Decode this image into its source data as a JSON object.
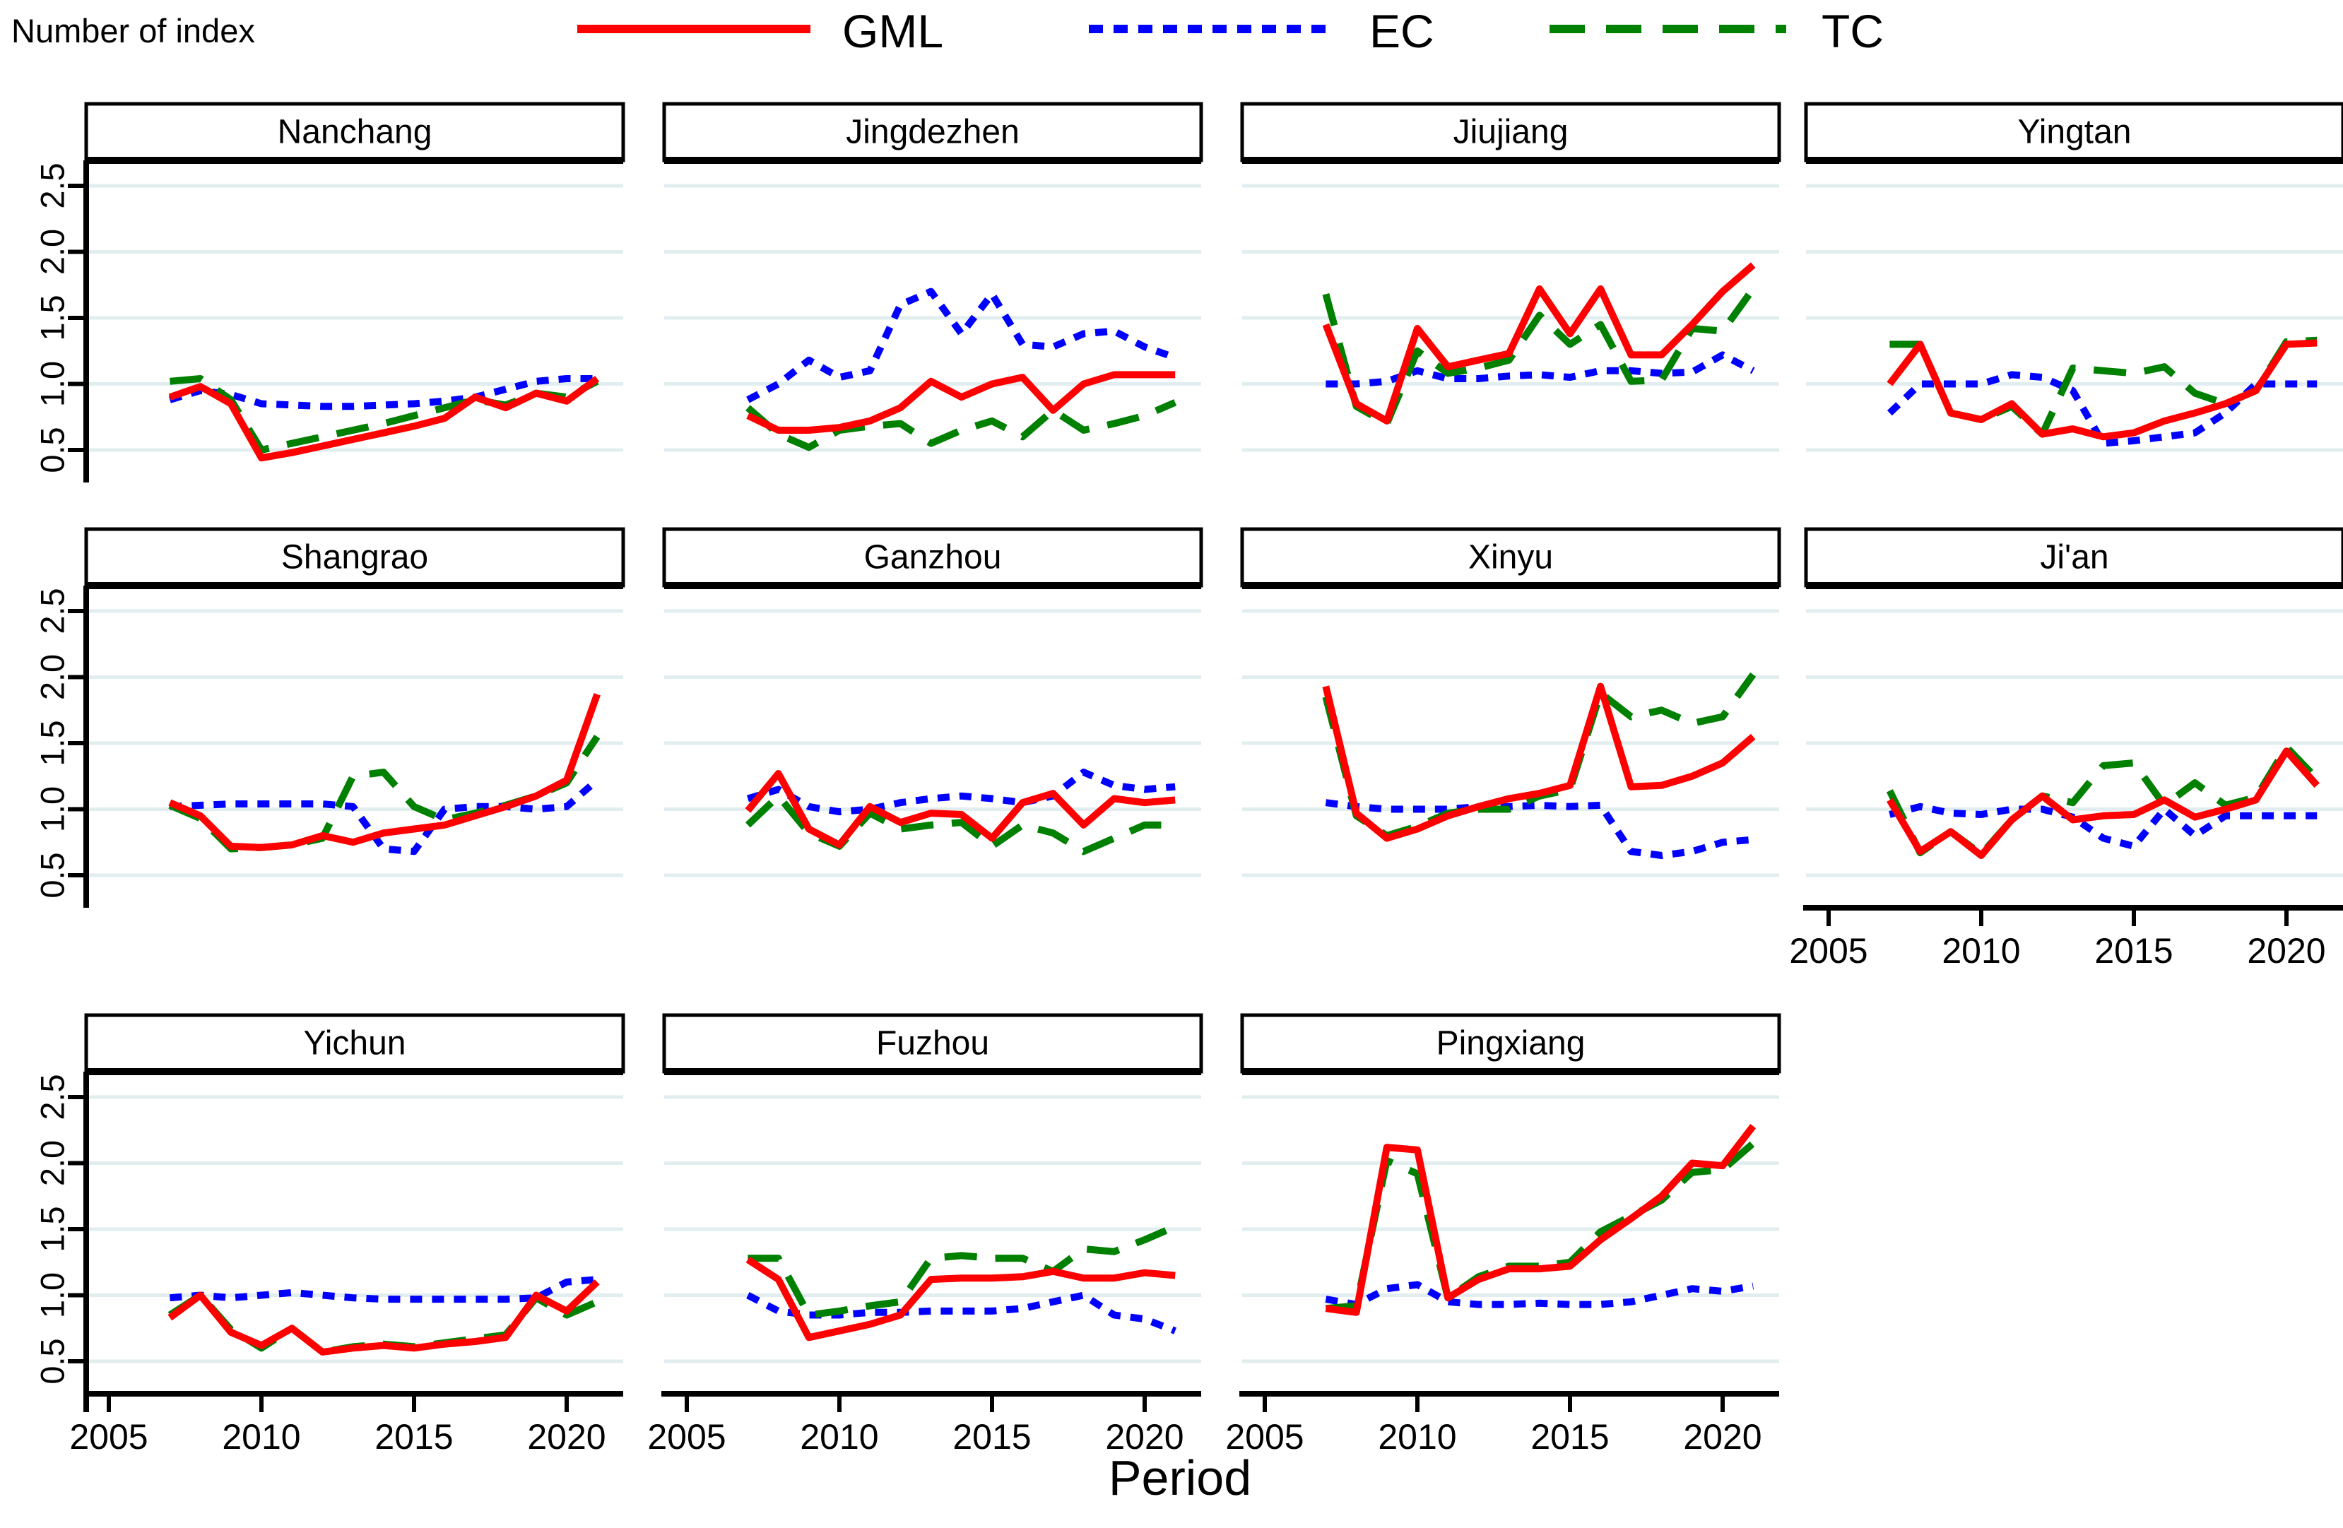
{
  "header": {
    "ylabel": "Number of index",
    "legend": [
      {
        "label": "GML",
        "color": "#ff0000",
        "style": "solid"
      },
      {
        "label": "EC",
        "color": "#0000ff",
        "style": "short-dash"
      },
      {
        "label": "TC",
        "color": "#008000",
        "style": "long-dash"
      }
    ]
  },
  "xlabel": "Period",
  "axes": {
    "y_tick_labels": [
      "0.5",
      "1.0",
      "1.5",
      "2.0",
      "2.5"
    ],
    "y_ticks": [
      0.5,
      1.0,
      1.5,
      2.0,
      2.5
    ],
    "x_tick_labels": [
      "2005",
      "2010",
      "2015",
      "2020"
    ],
    "x_ticks": [
      2005,
      2010,
      2015,
      2020
    ],
    "grid": true,
    "gridline_color": "#e2edf0"
  },
  "chart_data": {
    "type": "line",
    "x": [
      2007,
      2008,
      2009,
      2010,
      2011,
      2012,
      2013,
      2014,
      2015,
      2016,
      2017,
      2018,
      2019,
      2020,
      2021
    ],
    "series_names": [
      "GML",
      "EC",
      "TC"
    ],
    "panels": [
      {
        "title": "Nanchang",
        "series": [
          {
            "name": "GML",
            "values": [
              0.9,
              0.98,
              0.85,
              0.44,
              0.48,
              0.53,
              0.58,
              0.63,
              0.68,
              0.74,
              0.9,
              0.82,
              0.93,
              0.87,
              1.04
            ]
          },
          {
            "name": "EC",
            "values": [
              0.88,
              0.95,
              0.92,
              0.85,
              0.84,
              0.83,
              0.83,
              0.84,
              0.85,
              0.87,
              0.9,
              0.96,
              1.02,
              1.04,
              1.04
            ]
          },
          {
            "name": "TC",
            "values": [
              1.02,
              1.04,
              0.88,
              0.5,
              0.55,
              0.6,
              0.65,
              0.7,
              0.76,
              0.82,
              0.88,
              0.84,
              0.93,
              0.9,
              1.02
            ]
          }
        ]
      },
      {
        "title": "Jingdezhen",
        "series": [
          {
            "name": "GML",
            "values": [
              0.76,
              0.65,
              0.65,
              0.67,
              0.72,
              0.82,
              1.02,
              0.9,
              1.0,
              1.05,
              0.8,
              1.0,
              1.07,
              1.07,
              1.07
            ]
          },
          {
            "name": "EC",
            "values": [
              0.88,
              1.0,
              1.18,
              1.05,
              1.1,
              1.6,
              1.7,
              1.38,
              1.68,
              1.3,
              1.28,
              1.38,
              1.4,
              1.28,
              1.2
            ]
          },
          {
            "name": "TC",
            "values": [
              0.82,
              0.62,
              0.52,
              0.65,
              0.68,
              0.7,
              0.55,
              0.65,
              0.72,
              0.6,
              0.8,
              0.65,
              0.7,
              0.76,
              0.86
            ]
          }
        ]
      },
      {
        "title": "Jiujiang",
        "series": [
          {
            "name": "GML",
            "values": [
              1.45,
              0.85,
              0.72,
              1.42,
              1.13,
              1.18,
              1.23,
              1.72,
              1.38,
              1.72,
              1.22,
              1.22,
              1.45,
              1.7,
              1.9
            ]
          },
          {
            "name": "EC",
            "values": [
              1.0,
              1.0,
              1.02,
              1.1,
              1.04,
              1.04,
              1.06,
              1.07,
              1.05,
              1.1,
              1.1,
              1.08,
              1.09,
              1.22,
              1.1
            ]
          },
          {
            "name": "TC",
            "values": [
              1.68,
              0.83,
              0.7,
              1.25,
              1.08,
              1.12,
              1.18,
              1.52,
              1.3,
              1.45,
              1.02,
              1.03,
              1.42,
              1.4,
              1.72
            ]
          }
        ]
      },
      {
        "title": "Yingtan",
        "series": [
          {
            "name": "GML",
            "values": [
              1.0,
              1.3,
              0.78,
              0.73,
              0.85,
              0.62,
              0.66,
              0.6,
              0.63,
              0.72,
              0.78,
              0.85,
              0.95,
              1.3,
              1.31
            ]
          },
          {
            "name": "EC",
            "values": [
              0.78,
              1.0,
              1.0,
              1.0,
              1.07,
              1.05,
              0.95,
              0.55,
              0.57,
              0.6,
              0.63,
              0.78,
              1.0,
              1.0,
              1.0
            ]
          },
          {
            "name": "TC",
            "values": [
              1.3,
              1.3,
              0.78,
              0.73,
              0.83,
              0.62,
              1.12,
              1.1,
              1.08,
              1.13,
              0.93,
              0.85,
              0.95,
              1.32,
              1.33
            ]
          }
        ]
      },
      {
        "title": "Shangrao",
        "series": [
          {
            "name": "GML",
            "values": [
              1.05,
              0.95,
              0.72,
              0.71,
              0.73,
              0.8,
              0.75,
              0.82,
              0.85,
              0.88,
              0.95,
              1.02,
              1.1,
              1.22,
              1.87
            ]
          },
          {
            "name": "EC",
            "values": [
              1.02,
              1.03,
              1.04,
              1.04,
              1.04,
              1.04,
              1.02,
              0.7,
              0.68,
              1.0,
              1.02,
              1.02,
              1.0,
              1.02,
              1.22
            ]
          },
          {
            "name": "TC",
            "values": [
              1.03,
              0.93,
              0.7,
              0.71,
              0.73,
              0.78,
              1.25,
              1.28,
              1.02,
              0.92,
              0.97,
              1.03,
              1.1,
              1.2,
              1.55
            ]
          }
        ]
      },
      {
        "title": "Ganzhou",
        "series": [
          {
            "name": "GML",
            "values": [
              0.99,
              1.27,
              0.85,
              0.73,
              1.02,
              0.9,
              0.97,
              0.96,
              0.78,
              1.05,
              1.12,
              0.88,
              1.08,
              1.05,
              1.07
            ]
          },
          {
            "name": "EC",
            "values": [
              1.08,
              1.15,
              1.02,
              0.98,
              1.0,
              1.05,
              1.08,
              1.1,
              1.08,
              1.05,
              1.1,
              1.28,
              1.18,
              1.15,
              1.17
            ]
          },
          {
            "name": "TC",
            "values": [
              0.88,
              1.1,
              0.82,
              0.72,
              0.97,
              0.85,
              0.88,
              0.9,
              0.72,
              0.88,
              0.82,
              0.68,
              0.78,
              0.88,
              0.88
            ]
          }
        ]
      },
      {
        "title": "Xinyu",
        "series": [
          {
            "name": "GML",
            "values": [
              1.93,
              0.97,
              0.78,
              0.85,
              0.95,
              1.02,
              1.08,
              1.12,
              1.18,
              1.93,
              1.17,
              1.18,
              1.25,
              1.35,
              1.55
            ]
          },
          {
            "name": "EC",
            "values": [
              1.05,
              1.02,
              1.0,
              1.0,
              1.0,
              1.02,
              1.02,
              1.03,
              1.02,
              1.03,
              0.68,
              0.65,
              0.68,
              0.75,
              0.77
            ]
          },
          {
            "name": "TC",
            "values": [
              1.85,
              0.95,
              0.8,
              0.87,
              0.97,
              1.0,
              1.0,
              1.1,
              1.15,
              1.88,
              1.7,
              1.75,
              1.65,
              1.7,
              2.02
            ]
          }
        ]
      },
      {
        "title": "Ji'an",
        "series": [
          {
            "name": "GML",
            "values": [
              1.07,
              0.68,
              0.83,
              0.65,
              0.92,
              1.1,
              0.92,
              0.95,
              0.96,
              1.07,
              0.94,
              1.0,
              1.07,
              1.44,
              1.18
            ]
          },
          {
            "name": "EC",
            "values": [
              0.96,
              1.02,
              0.97,
              0.96,
              1.0,
              1.0,
              0.94,
              0.78,
              0.72,
              1.0,
              0.8,
              0.95,
              0.95,
              0.95,
              0.95
            ]
          },
          {
            "name": "TC",
            "values": [
              1.14,
              0.67,
              0.83,
              0.66,
              0.92,
              1.1,
              1.05,
              1.33,
              1.35,
              1.03,
              1.2,
              1.03,
              1.09,
              1.47,
              1.23
            ]
          }
        ]
      },
      {
        "title": "Yichun",
        "series": [
          {
            "name": "GML",
            "values": [
              0.83,
              1.0,
              0.72,
              0.62,
              0.75,
              0.57,
              0.6,
              0.62,
              0.6,
              0.63,
              0.65,
              0.68,
              1.0,
              0.88,
              1.1
            ]
          },
          {
            "name": "EC",
            "values": [
              0.98,
              1.0,
              0.98,
              1.0,
              1.02,
              1.0,
              0.98,
              0.97,
              0.97,
              0.97,
              0.97,
              0.97,
              0.98,
              1.1,
              1.12
            ]
          },
          {
            "name": "TC",
            "values": [
              0.85,
              1.0,
              0.74,
              0.6,
              0.75,
              0.57,
              0.61,
              0.63,
              0.61,
              0.64,
              0.67,
              0.7,
              0.98,
              0.85,
              0.95
            ]
          }
        ]
      },
      {
        "title": "Fuzhou",
        "series": [
          {
            "name": "GML",
            "values": [
              1.27,
              1.12,
              0.68,
              0.73,
              0.78,
              0.85,
              1.12,
              1.13,
              1.13,
              1.14,
              1.18,
              1.13,
              1.13,
              1.17,
              1.15
            ]
          },
          {
            "name": "EC",
            "values": [
              1.0,
              0.88,
              0.85,
              0.85,
              0.87,
              0.87,
              0.88,
              0.88,
              0.88,
              0.9,
              0.95,
              1.0,
              0.85,
              0.82,
              0.73
            ]
          },
          {
            "name": "TC",
            "values": [
              1.28,
              1.28,
              0.85,
              0.88,
              0.92,
              0.95,
              1.28,
              1.3,
              1.28,
              1.28,
              1.18,
              1.35,
              1.33,
              1.42,
              1.52
            ]
          }
        ]
      },
      {
        "title": "Pingxiang",
        "series": [
          {
            "name": "GML",
            "values": [
              0.9,
              0.87,
              2.12,
              2.1,
              0.98,
              1.12,
              1.2,
              1.2,
              1.22,
              1.42,
              1.58,
              1.75,
              2.0,
              1.98,
              2.28
            ]
          },
          {
            "name": "EC",
            "values": [
              0.97,
              0.93,
              1.05,
              1.08,
              0.95,
              0.93,
              0.93,
              0.94,
              0.93,
              0.93,
              0.95,
              1.0,
              1.05,
              1.03,
              1.07
            ]
          },
          {
            "name": "TC",
            "values": [
              0.9,
              0.92,
              2.02,
              1.92,
              0.98,
              1.14,
              1.22,
              1.22,
              1.25,
              1.48,
              1.6,
              1.72,
              1.93,
              1.95,
              2.15
            ]
          }
        ]
      }
    ]
  }
}
